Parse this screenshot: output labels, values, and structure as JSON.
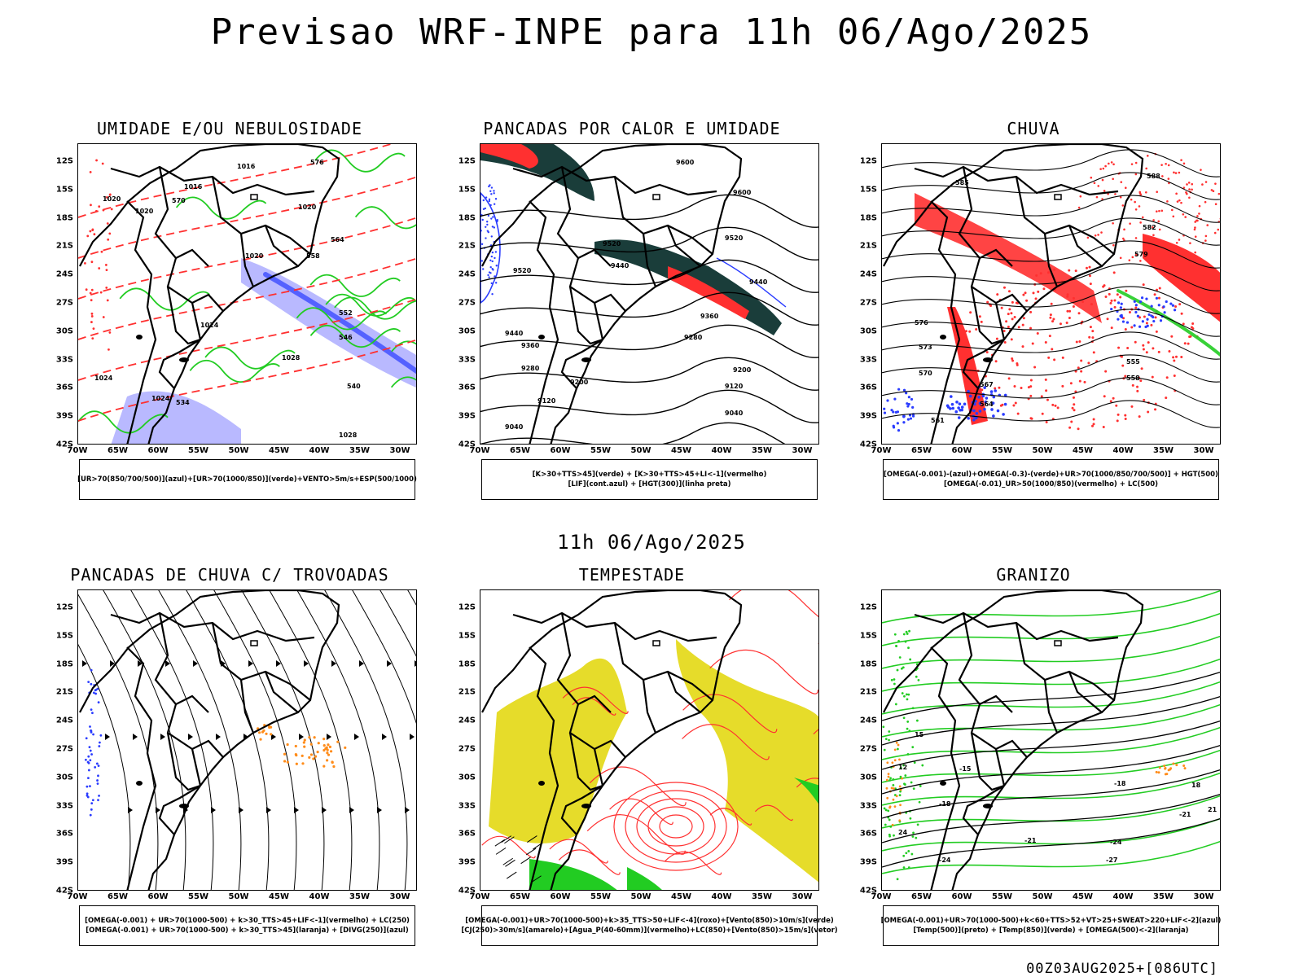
{
  "title": "Previsao WRF-INPE  para 11h 06/Ago/2025",
  "subtitle": "11h 06/Ago/2025",
  "footer": "00Z03AUG2025+[086UTC]",
  "axes": {
    "lat_labels": [
      "12S",
      "15S",
      "18S",
      "21S",
      "24S",
      "27S",
      "30S",
      "33S",
      "36S",
      "39S",
      "42S"
    ],
    "lon_labels": [
      "70W",
      "65W",
      "60W",
      "55W",
      "50W",
      "45W",
      "40W",
      "35W",
      "30W"
    ]
  },
  "colors": {
    "green": "#22cc22",
    "red": "#ff3030",
    "blue": "#2a3cff",
    "lightblue": "#a8a8ff",
    "darkteal": "#1a3d3a",
    "yellow": "#e6dc2a",
    "orange": "#ff8c1a"
  },
  "panels": [
    {
      "id": "umidade",
      "title": "UMIDADE E/OU NEBULOSIDADE",
      "legend": [
        "[UR>70(850/700/500)](azul)+[UR>70(1000/850)](verde)+VENTO>5m/s+ESP(500/1000)"
      ],
      "contour_labels": [
        "1016",
        "1016",
        "1020",
        "1020",
        "1020",
        "1020",
        "1024",
        "1024",
        "1024",
        "1028",
        "1028",
        "570",
        "564",
        "558",
        "552",
        "546",
        "540",
        "534",
        "576"
      ]
    },
    {
      "id": "pancadas-calor",
      "title": "PANCADAS POR CALOR E UMIDADE",
      "legend": [
        "[K>30+TTS>45](verde) + [K>30+TTS>45+LI<-1](vermelho)",
        "[LIF](cont.azul) + [HGT(300)](linha preta)"
      ],
      "contour_labels": [
        "9600",
        "9600",
        "9520",
        "9520",
        "9520",
        "9440",
        "9440",
        "9440",
        "9360",
        "9360",
        "9280",
        "9280",
        "9200",
        "9200",
        "9120",
        "9120",
        "9040",
        "9040"
      ]
    },
    {
      "id": "chuva",
      "title": "CHUVA",
      "legend": [
        "[OMEGA(-0.001)-(azul)+OMEGA(-0.3)-(verde)+UR>70(1000/850/700/500)] + HGT(500)",
        "[OMEGA(-0.01)_UR>50(1000/850)(vermelho) + LC(500)"
      ],
      "contour_labels": [
        "585",
        "588",
        "582",
        "579",
        "576",
        "573",
        "570",
        "567",
        "564",
        "561",
        "558",
        "555"
      ]
    },
    {
      "id": "pancadas-trovoadas",
      "title": "PANCADAS DE CHUVA C/ TROVOADAS",
      "legend": [
        "[OMEGA(-0.001) + UR>70(1000-500) + k>30_TTS>45+LIF<-1](vermelho) + LC(250)",
        "[OMEGA(-0.001) + UR>70(1000-500) + k>30_TTS>45](laranja) + [DIVG(250)](azul)"
      ],
      "contour_labels": []
    },
    {
      "id": "tempestade",
      "title": "TEMPESTADE",
      "legend": [
        "[OMEGA(-0.001)+UR>70(1000-500)+k>35_TTS>50+LIF<-4](roxo)+[Vento(850)>10m/s](verde)",
        "[CJ(250)>30m/s](amarelo)+[Agua_P(40-60mm)](vermelho)+LC(850)+[Vento(850)>15m/s](vetor)"
      ],
      "contour_labels": []
    },
    {
      "id": "granizo",
      "title": "GRANIZO",
      "legend": [
        "[OMEGA(-0.001)+UR>70(1000-500)+k<60+TTS>52+VT>25+SWEAT>220+LIF<-2](azul)",
        "[Temp(500)](preto) + [Temp(850)](verde) + [OMEGA(500)<-2](laranja)"
      ],
      "contour_labels": [
        "-15",
        "-18",
        "-18",
        "-21",
        "-21",
        "-24",
        "-24",
        "-27",
        "12",
        "15",
        "18",
        "21",
        "24"
      ]
    }
  ]
}
